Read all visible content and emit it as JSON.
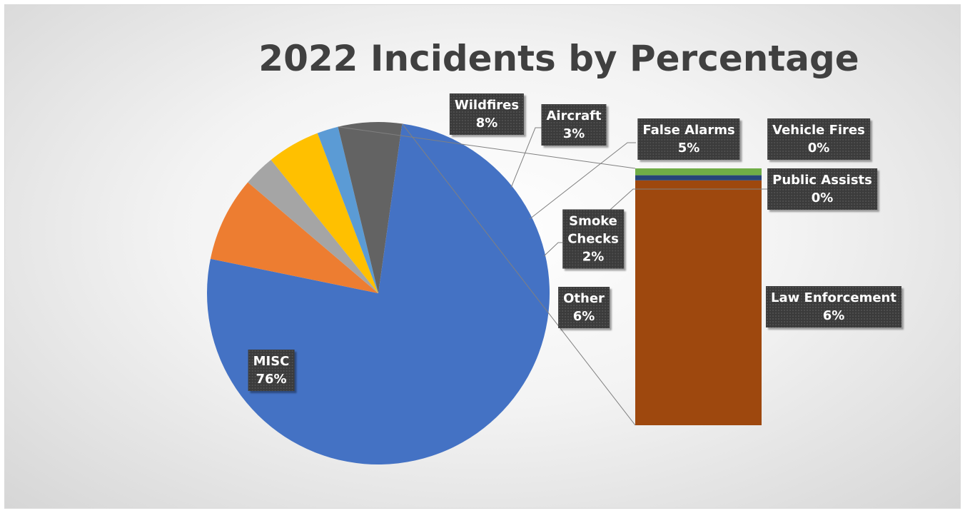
{
  "chart_data": {
    "type": "bar-of-pie",
    "title": "2022 Incidents by Percentage",
    "pie": [
      {
        "name": "MISC",
        "value": 76,
        "label": "76%",
        "color": "#4472C4"
      },
      {
        "name": "Wildfires",
        "value": 8,
        "label": "8%",
        "color": "#ED7D31"
      },
      {
        "name": "Aircraft",
        "value": 3,
        "label": "3%",
        "color": "#A5A5A5"
      },
      {
        "name": "False Alarms",
        "value": 5,
        "label": "5%",
        "color": "#FFC000"
      },
      {
        "name": "Smoke Checks",
        "value": 2,
        "label": "2%",
        "color": "#5B9BD5"
      },
      {
        "name": "Other",
        "value": 6,
        "label": "6%",
        "color": "#636363"
      }
    ],
    "bar": [
      {
        "name": "Law Enforcement",
        "value": 5.72,
        "label": "6%",
        "color": "#9E480E"
      },
      {
        "name": "Public Assists",
        "value": 0.12,
        "label": "0%",
        "color": "#264478"
      },
      {
        "name": "Vehicle Fires",
        "value": 0.16,
        "label": "0%",
        "color": "#70AD47"
      }
    ],
    "legend": "none",
    "data_labels": "category name and percentage"
  }
}
